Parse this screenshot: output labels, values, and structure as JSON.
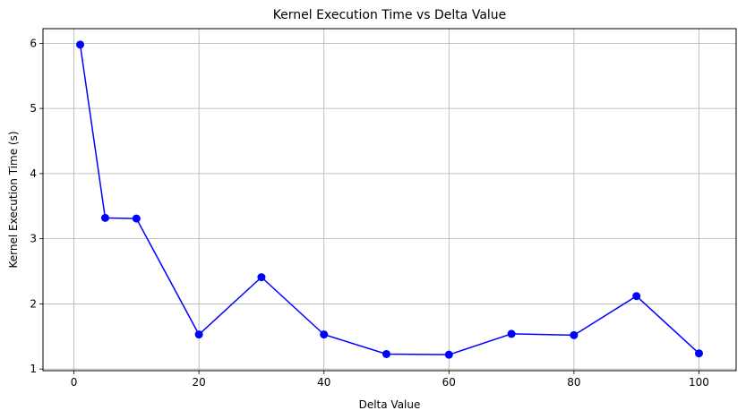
{
  "chart_data": {
    "type": "line",
    "title": "Kernel Execution Time vs Delta Value",
    "xlabel": "Delta Value",
    "ylabel": "Kernel Execution Time (s)",
    "xlim": [
      -4.95,
      105.95
    ],
    "ylim": [
      0.975,
      6.225
    ],
    "xticks": [
      0,
      20,
      40,
      60,
      80,
      100
    ],
    "yticks": [
      1,
      2,
      3,
      4,
      5,
      6
    ],
    "grid": true,
    "legend": "none",
    "series": [
      {
        "color": "#0000ff",
        "marker": "circle",
        "x": [
          1,
          5,
          10,
          20,
          30,
          40,
          50,
          60,
          70,
          80,
          90,
          100
        ],
        "y": [
          5.98,
          3.32,
          3.31,
          1.53,
          2.41,
          1.53,
          1.23,
          1.22,
          1.54,
          1.52,
          2.12,
          1.24
        ]
      }
    ]
  }
}
